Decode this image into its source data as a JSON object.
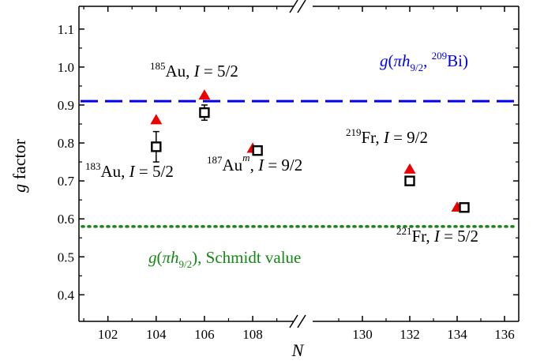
{
  "chart_data": {
    "type": "scatter",
    "title": "",
    "xlabel": "N",
    "ylabel": "g factor",
    "ylim": [
      0.33,
      1.16
    ],
    "broken_x_axis": true,
    "x_segments": [
      {
        "range": [
          100.8,
          109.7
        ],
        "ticks": [
          102,
          104,
          106,
          108
        ]
      },
      {
        "range": [
          127.9,
          136.6
        ],
        "ticks": [
          130,
          132,
          134,
          136
        ]
      }
    ],
    "y_ticks": [
      0.4,
      0.5,
      0.6,
      0.7,
      0.8,
      0.9,
      1.0,
      1.1
    ],
    "x_tick_labels": [
      "102",
      "104",
      "106",
      "108",
      "130",
      "132",
      "134",
      "136"
    ],
    "y_tick_labels": [
      "0.4",
      "0.5",
      "0.6",
      "0.7",
      "0.8",
      "0.9",
      "1.0",
      "1.1"
    ],
    "grid": false,
    "series": [
      {
        "marker": "triangle",
        "color": "#ee0000",
        "points": [
          {
            "x": 104,
            "y": 0.86
          },
          {
            "x": 106,
            "y": 0.925
          },
          {
            "x": 108,
            "y": 0.785
          },
          {
            "x": 132,
            "y": 0.73
          },
          {
            "x": 134,
            "y": 0.63
          }
        ]
      },
      {
        "marker": "open-square",
        "color": "#000000",
        "points": [
          {
            "x": 104,
            "y": 0.79,
            "err": 0.04
          },
          {
            "x": 106,
            "y": 0.88,
            "err": 0.02
          },
          {
            "x": 108.2,
            "y": 0.78
          },
          {
            "x": 132,
            "y": 0.7
          },
          {
            "x": 134.3,
            "y": 0.63
          }
        ]
      }
    ],
    "reference_lines": [
      {
        "y": 0.91,
        "color": "#0000ee",
        "style": "dashed"
      },
      {
        "y": 0.58,
        "color": "#118811",
        "style": "dotted"
      }
    ],
    "annotations": {
      "au185": {
        "mass": "185",
        "element": "Au, ",
        "spin_symbol": "I",
        "spin_value": " = 5/2"
      },
      "au183": {
        "mass": "183",
        "element": "Au, ",
        "spin_symbol": "I",
        "spin_value": " = 5/2"
      },
      "au187": {
        "mass": "187",
        "element": "Au",
        "superscript": "m",
        "sep": ", ",
        "spin_symbol": "I",
        "spin_value": " = 9/2"
      },
      "fr219": {
        "mass": "219",
        "element": "Fr, ",
        "spin_symbol": "I",
        "spin_value": " = 9/2"
      },
      "fr221": {
        "mass": "221",
        "element": "Fr, ",
        "spin_symbol": "I",
        "spin_value": " = 5/2"
      },
      "bi209": {
        "g": "g",
        "open": "(",
        "pi": "π",
        "h": "h",
        "sub": "9/2",
        "comma": ", ",
        "mass": "209",
        "element": "Bi)"
      },
      "schmidt": {
        "g": "g",
        "open": "(",
        "pi": "π",
        "h": "h",
        "sub": "9/2",
        "rest": "), Schmidt value"
      }
    }
  }
}
